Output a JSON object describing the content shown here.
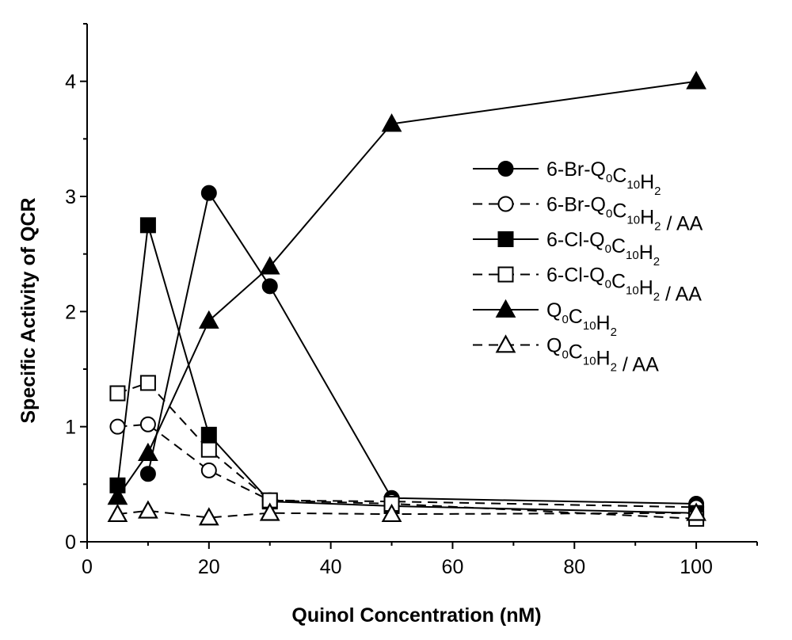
{
  "chart_data": {
    "type": "line",
    "title": "",
    "xlabel": "Quinol Concentration (nM)",
    "ylabel": "Specific Activity of QCR",
    "xlim": [
      0,
      110
    ],
    "ylim": [
      0,
      4.5
    ],
    "x_ticks": [
      "0",
      "20",
      "40",
      "60",
      "80",
      "100"
    ],
    "y_ticks": [
      "0",
      "1",
      "2",
      "3",
      "4"
    ],
    "grid": false,
    "legend_position": "right",
    "series": [
      {
        "name": "6-Br-Q0C10H2",
        "label_parts": [
          {
            "t": "6-Br-Q",
            "sub": false
          },
          {
            "t": "0",
            "sub": true
          },
          {
            "t": "C",
            "sub": false
          },
          {
            "t": "10",
            "sub": true
          },
          {
            "t": "H",
            "sub": false
          },
          {
            "t": "2",
            "sub": true
          }
        ],
        "marker": "circle",
        "filled": true,
        "line": "solid",
        "x": [
          10,
          20,
          30,
          50,
          100
        ],
        "y": [
          0.59,
          3.03,
          2.22,
          0.38,
          0.33
        ]
      },
      {
        "name": "6-Br-Q0C10H2 / AA",
        "label_parts": [
          {
            "t": "6-Br-Q",
            "sub": false
          },
          {
            "t": "0",
            "sub": true
          },
          {
            "t": "C",
            "sub": false
          },
          {
            "t": "10",
            "sub": true
          },
          {
            "t": "H",
            "sub": false
          },
          {
            "t": "2",
            "sub": true
          },
          {
            "t": " / AA",
            "sub": false
          }
        ],
        "marker": "circle",
        "filled": false,
        "line": "dashed",
        "x": [
          5,
          10,
          20,
          30,
          50,
          100
        ],
        "y": [
          1.0,
          1.02,
          0.62,
          0.36,
          0.35,
          0.3
        ]
      },
      {
        "name": "6-Cl-Q0C10H2",
        "label_parts": [
          {
            "t": "6-Cl-Q",
            "sub": false
          },
          {
            "t": "0",
            "sub": true
          },
          {
            "t": "C",
            "sub": false
          },
          {
            "t": "10",
            "sub": true
          },
          {
            "t": "H",
            "sub": false
          },
          {
            "t": "2",
            "sub": true
          }
        ],
        "marker": "square",
        "filled": true,
        "line": "solid",
        "x": [
          5,
          10,
          20,
          30,
          50,
          100
        ],
        "y": [
          0.49,
          2.75,
          0.93,
          0.35,
          0.31,
          0.25
        ]
      },
      {
        "name": "6-Cl-Q0C10H2 / AA",
        "label_parts": [
          {
            "t": "6-Cl-Q",
            "sub": false
          },
          {
            "t": "0",
            "sub": true
          },
          {
            "t": "C",
            "sub": false
          },
          {
            "t": "10",
            "sub": true
          },
          {
            "t": "H",
            "sub": false
          },
          {
            "t": "2",
            "sub": true
          },
          {
            "t": " / AA",
            "sub": false
          }
        ],
        "marker": "square",
        "filled": false,
        "line": "dashed",
        "x": [
          5,
          10,
          20,
          30,
          50,
          100
        ],
        "y": [
          1.29,
          1.38,
          0.8,
          0.36,
          0.33,
          0.2
        ]
      },
      {
        "name": "Q0C10H2",
        "label_parts": [
          {
            "t": "Q",
            "sub": false
          },
          {
            "t": "0",
            "sub": true
          },
          {
            "t": "C",
            "sub": false
          },
          {
            "t": "10",
            "sub": true
          },
          {
            "t": "H",
            "sub": false
          },
          {
            "t": "2",
            "sub": true
          }
        ],
        "marker": "triangle",
        "filled": true,
        "line": "solid",
        "x": [
          5,
          10,
          20,
          30,
          50,
          100
        ],
        "y": [
          0.39,
          0.77,
          1.92,
          2.39,
          3.63,
          4.0
        ]
      },
      {
        "name": "Q0C10H2 / AA",
        "label_parts": [
          {
            "t": "Q",
            "sub": false
          },
          {
            "t": "0",
            "sub": true
          },
          {
            "t": "C",
            "sub": false
          },
          {
            "t": "10",
            "sub": true
          },
          {
            "t": "H",
            "sub": false
          },
          {
            "t": "2",
            "sub": true
          },
          {
            "t": " / AA",
            "sub": false
          }
        ],
        "marker": "triangle",
        "filled": false,
        "line": "dashed",
        "x": [
          5,
          10,
          20,
          30,
          50,
          100
        ],
        "y": [
          0.24,
          0.27,
          0.21,
          0.25,
          0.24,
          0.25
        ]
      }
    ]
  }
}
